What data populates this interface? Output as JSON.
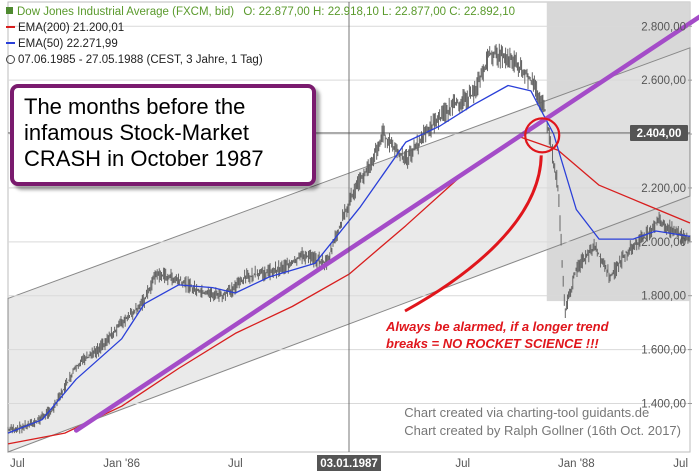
{
  "legend": {
    "instrument": "Dow Jones Industrial Average (FXCM, bid)",
    "ohlc": "O: 22.877,00  H: 22.918,10  L: 22.877,00  C: 22.892,10",
    "ema200": "EMA(200)  21.200,01",
    "ema50": "EMA(50)  22.271,99",
    "range": "07.06.1985 - 27.05.1988  (CEST, 3 Jahre, 1 Tag)"
  },
  "callout": {
    "text": "The months before the infamous Stock-Market CRASH in October 1987"
  },
  "annotation": {
    "line1": "Always be alarmed, if a longer trend",
    "line2": "breaks = NO ROCKET SCIENCE !!!"
  },
  "credits": {
    "line1": "Chart created via charting-tool guidants.de",
    "line2": "Chart created by Ralph Gollner (16th Oct. 2017)"
  },
  "crosshair": {
    "x_label": "03.01.1987",
    "y_label": "2.404,00",
    "y_value": 2404
  },
  "colors": {
    "price": "#666666",
    "ema200": "#d81e1e",
    "ema50": "#2a3fd8",
    "trendline": "#a44cc8",
    "channel_fill": "#e3e3e3",
    "highlight_fill": "#d4d4d4",
    "circle": "#e0161c"
  },
  "chart_data": {
    "type": "line",
    "title": "Dow Jones Industrial Average (FXCM, bid)",
    "x_ticks": [
      "Jul",
      "Jan '86",
      "Jul",
      "Jan '87",
      "Jul",
      "Jan '88",
      "Jul"
    ],
    "x_tick_t": [
      0.0,
      0.5,
      1.0,
      1.5,
      2.0,
      2.5,
      3.0
    ],
    "y_ticks": [
      "1.400,00",
      "1.600,00",
      "1.800,00",
      "2.000,00",
      "2.200,00",
      "2.400,00",
      "2.600,00",
      "2.800,00"
    ],
    "y_tick_v": [
      1400,
      1600,
      1800,
      2000,
      2200,
      2400,
      2600,
      2800
    ],
    "ylim": [
      1220,
      2890
    ],
    "xlim": [
      0,
      3.0
    ],
    "series": [
      {
        "name": "EMA(200)",
        "points": [
          [
            0.0,
            1250
          ],
          [
            0.25,
            1290
          ],
          [
            0.5,
            1390
          ],
          [
            0.75,
            1530
          ],
          [
            1.0,
            1660
          ],
          [
            1.25,
            1760
          ],
          [
            1.5,
            1880
          ],
          [
            1.75,
            2060
          ],
          [
            2.0,
            2250
          ],
          [
            2.25,
            2390
          ],
          [
            2.42,
            2340
          ],
          [
            2.6,
            2210
          ],
          [
            2.8,
            2140
          ],
          [
            3.0,
            2070
          ]
        ]
      },
      {
        "name": "EMA(50)",
        "points": [
          [
            0.0,
            1290
          ],
          [
            0.15,
            1340
          ],
          [
            0.3,
            1490
          ],
          [
            0.5,
            1640
          ],
          [
            0.6,
            1770
          ],
          [
            0.75,
            1840
          ],
          [
            0.9,
            1830
          ],
          [
            1.0,
            1810
          ],
          [
            1.15,
            1870
          ],
          [
            1.35,
            1920
          ],
          [
            1.55,
            2130
          ],
          [
            1.75,
            2370
          ],
          [
            1.9,
            2430
          ],
          [
            2.05,
            2510
          ],
          [
            2.2,
            2580
          ],
          [
            2.3,
            2560
          ],
          [
            2.4,
            2400
          ],
          [
            2.5,
            2120
          ],
          [
            2.6,
            2010
          ],
          [
            2.75,
            2010
          ],
          [
            2.85,
            2040
          ],
          [
            3.0,
            2020
          ]
        ]
      },
      {
        "name": "Dow Jones",
        "points": [
          [
            0.0,
            1300
          ],
          [
            0.1,
            1320
          ],
          [
            0.2,
            1380
          ],
          [
            0.3,
            1540
          ],
          [
            0.4,
            1600
          ],
          [
            0.5,
            1700
          ],
          [
            0.6,
            1780
          ],
          [
            0.65,
            1880
          ],
          [
            0.75,
            1860
          ],
          [
            0.85,
            1810
          ],
          [
            0.95,
            1800
          ],
          [
            1.05,
            1870
          ],
          [
            1.2,
            1900
          ],
          [
            1.3,
            1950
          ],
          [
            1.4,
            1920
          ],
          [
            1.5,
            2150
          ],
          [
            1.6,
            2300
          ],
          [
            1.65,
            2400
          ],
          [
            1.75,
            2300
          ],
          [
            1.85,
            2420
          ],
          [
            1.95,
            2500
          ],
          [
            2.05,
            2550
          ],
          [
            2.12,
            2700
          ],
          [
            2.22,
            2680
          ],
          [
            2.3,
            2600
          ],
          [
            2.36,
            2500
          ],
          [
            2.42,
            2200
          ],
          [
            2.45,
            1740
          ],
          [
            2.5,
            1900
          ],
          [
            2.58,
            1980
          ],
          [
            2.65,
            1870
          ],
          [
            2.72,
            1960
          ],
          [
            2.8,
            2020
          ],
          [
            2.86,
            2080
          ],
          [
            2.92,
            2040
          ],
          [
            3.0,
            2010
          ]
        ]
      }
    ],
    "trendline": [
      [
        0.3,
        1300
      ],
      [
        3.0,
        2810
      ]
    ],
    "channel": {
      "upper": [
        [
          0.0,
          1790
        ],
        [
          3.0,
          2720
        ]
      ],
      "lower": [
        [
          0.0,
          1220
        ],
        [
          3.0,
          2170
        ]
      ]
    }
  }
}
